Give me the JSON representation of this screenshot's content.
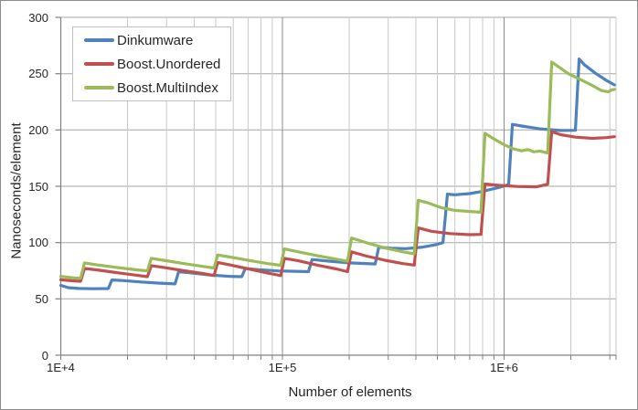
{
  "colors": {
    "background": "#FFFFFF",
    "outer_border": "#8C8C8C",
    "legend_border": "#BFBFBF",
    "grid_h": "#A6A6A6",
    "grid_minor": "#C9C9C9",
    "grid_major": "#8C8C8C",
    "axis": "#808080",
    "text": "#262626",
    "series_blue": "#4F81BD",
    "series_red": "#C0504D",
    "series_green": "#9BBB59"
  },
  "chart_data": {
    "type": "line",
    "x_axis": {
      "label": "Number of elements",
      "scale": "log",
      "min": 10000,
      "max": 3200000,
      "major_tick_values": [
        10000,
        100000,
        1000000
      ],
      "major_tick_labels": [
        "1E+4",
        "1E+5",
        "1E+6"
      ],
      "minor_tick_values": [
        20000,
        30000,
        40000,
        50000,
        60000,
        70000,
        80000,
        90000,
        200000,
        300000,
        400000,
        500000,
        600000,
        700000,
        800000,
        900000,
        2000000,
        3000000,
        3200000
      ],
      "grid": true
    },
    "y_axis": {
      "label": "Nanoseconds/element",
      "scale": "linear",
      "min": 0,
      "max": 300,
      "tick_step": 50,
      "tick_values": [
        0,
        50,
        100,
        150,
        200,
        250,
        300
      ],
      "tick_labels": [
        "0",
        "50",
        "100",
        "150",
        "200",
        "250",
        "300"
      ],
      "grid": true
    },
    "legend": {
      "position": "top-left"
    },
    "series": [
      {
        "name": "Dinkumware",
        "color": "#4F81BD",
        "points": [
          [
            10000,
            62
          ],
          [
            10800,
            60
          ],
          [
            12000,
            59.3
          ],
          [
            14000,
            59
          ],
          [
            16384,
            59.2
          ],
          [
            17000,
            66.8
          ],
          [
            19000,
            66.3
          ],
          [
            23000,
            65
          ],
          [
            28000,
            64
          ],
          [
            32768,
            63.3
          ],
          [
            34000,
            74
          ],
          [
            38000,
            73.2
          ],
          [
            47000,
            71.3
          ],
          [
            58000,
            70
          ],
          [
            65536,
            69.7
          ],
          [
            68000,
            77
          ],
          [
            78000,
            76
          ],
          [
            95000,
            74.8
          ],
          [
            115000,
            74.5
          ],
          [
            131072,
            74.2
          ],
          [
            136000,
            85
          ],
          [
            160000,
            83.6
          ],
          [
            200000,
            82
          ],
          [
            250000,
            81.2
          ],
          [
            262144,
            81
          ],
          [
            272000,
            96
          ],
          [
            310000,
            95
          ],
          [
            360000,
            94.6
          ],
          [
            430000,
            96
          ],
          [
            490000,
            98
          ],
          [
            530000,
            100
          ],
          [
            555000,
            143
          ],
          [
            600000,
            142.5
          ],
          [
            700000,
            143.5
          ],
          [
            800000,
            145.5
          ],
          [
            950000,
            149
          ],
          [
            1048576,
            151.5
          ],
          [
            1090000,
            205
          ],
          [
            1200000,
            203.5
          ],
          [
            1450000,
            201
          ],
          [
            1800000,
            199.5
          ],
          [
            2097152,
            199.7
          ],
          [
            2180000,
            263
          ],
          [
            2300000,
            258
          ],
          [
            2600000,
            250
          ],
          [
            2900000,
            244
          ],
          [
            3145739,
            240
          ]
        ]
      },
      {
        "name": "Boost.Unordered",
        "color": "#C0504D",
        "points": [
          [
            10000,
            67
          ],
          [
            11500,
            66
          ],
          [
            12289,
            65.7
          ],
          [
            12800,
            77
          ],
          [
            14500,
            75.8
          ],
          [
            18000,
            73.2
          ],
          [
            22000,
            71
          ],
          [
            24593,
            69.7
          ],
          [
            25600,
            79.5
          ],
          [
            29000,
            78
          ],
          [
            36000,
            75
          ],
          [
            44000,
            72.5
          ],
          [
            49157,
            70.7
          ],
          [
            51000,
            82.3
          ],
          [
            58000,
            80.2
          ],
          [
            72000,
            76.2
          ],
          [
            87000,
            72.7
          ],
          [
            98317,
            70.7
          ],
          [
            102000,
            86
          ],
          [
            118000,
            83.8
          ],
          [
            145000,
            79.8
          ],
          [
            175000,
            76.6
          ],
          [
            196613,
            74.2
          ],
          [
            205000,
            91.8
          ],
          [
            240000,
            88
          ],
          [
            290000,
            84.3
          ],
          [
            350000,
            81.3
          ],
          [
            393241,
            80
          ],
          [
            410000,
            113
          ],
          [
            470000,
            110
          ],
          [
            570000,
            108
          ],
          [
            700000,
            107
          ],
          [
            786433,
            107.3
          ],
          [
            820000,
            152
          ],
          [
            950000,
            150.8
          ],
          [
            1150000,
            149.8
          ],
          [
            1400000,
            149.5
          ],
          [
            1572869,
            151.8
          ],
          [
            1640000,
            198.6
          ],
          [
            1800000,
            195.8
          ],
          [
            2100000,
            193.6
          ],
          [
            2500000,
            192.6
          ],
          [
            2900000,
            193.2
          ],
          [
            3145739,
            194
          ]
        ]
      },
      {
        "name": "Boost.MultiIndex",
        "color": "#9BBB59",
        "points": [
          [
            10000,
            70
          ],
          [
            11500,
            68.6
          ],
          [
            12289,
            68.4
          ],
          [
            12800,
            82
          ],
          [
            14500,
            80.3
          ],
          [
            18000,
            77.8
          ],
          [
            22000,
            75.8
          ],
          [
            24593,
            74.9
          ],
          [
            25600,
            86
          ],
          [
            29000,
            84.3
          ],
          [
            36000,
            81.3
          ],
          [
            44000,
            78.8
          ],
          [
            49157,
            77.4
          ],
          [
            51000,
            89
          ],
          [
            58000,
            87.2
          ],
          [
            72000,
            83.8
          ],
          [
            87000,
            81.2
          ],
          [
            98317,
            79.9
          ],
          [
            102000,
            94.4
          ],
          [
            118000,
            91.8
          ],
          [
            145000,
            88.2
          ],
          [
            175000,
            85.3
          ],
          [
            196613,
            83.4
          ],
          [
            205000,
            104
          ],
          [
            240000,
            99.8
          ],
          [
            290000,
            95.3
          ],
          [
            350000,
            91.8
          ],
          [
            393241,
            90
          ],
          [
            410000,
            137.6
          ],
          [
            450000,
            135.5
          ],
          [
            520000,
            131
          ],
          [
            600000,
            128.6
          ],
          [
            700000,
            127.6
          ],
          [
            786433,
            127
          ],
          [
            820000,
            197
          ],
          [
            900000,
            192
          ],
          [
            1000000,
            187
          ],
          [
            1100000,
            183.3
          ],
          [
            1200000,
            181.5
          ],
          [
            1280000,
            182.6
          ],
          [
            1360000,
            180.6
          ],
          [
            1450000,
            181.3
          ],
          [
            1572869,
            179.5
          ],
          [
            1640000,
            260.3
          ],
          [
            1750000,
            256.5
          ],
          [
            1950000,
            250
          ],
          [
            2200000,
            245
          ],
          [
            2500000,
            239.5
          ],
          [
            2750000,
            235
          ],
          [
            2950000,
            233.8
          ],
          [
            3050000,
            235.5
          ],
          [
            3145739,
            236
          ]
        ]
      }
    ]
  }
}
